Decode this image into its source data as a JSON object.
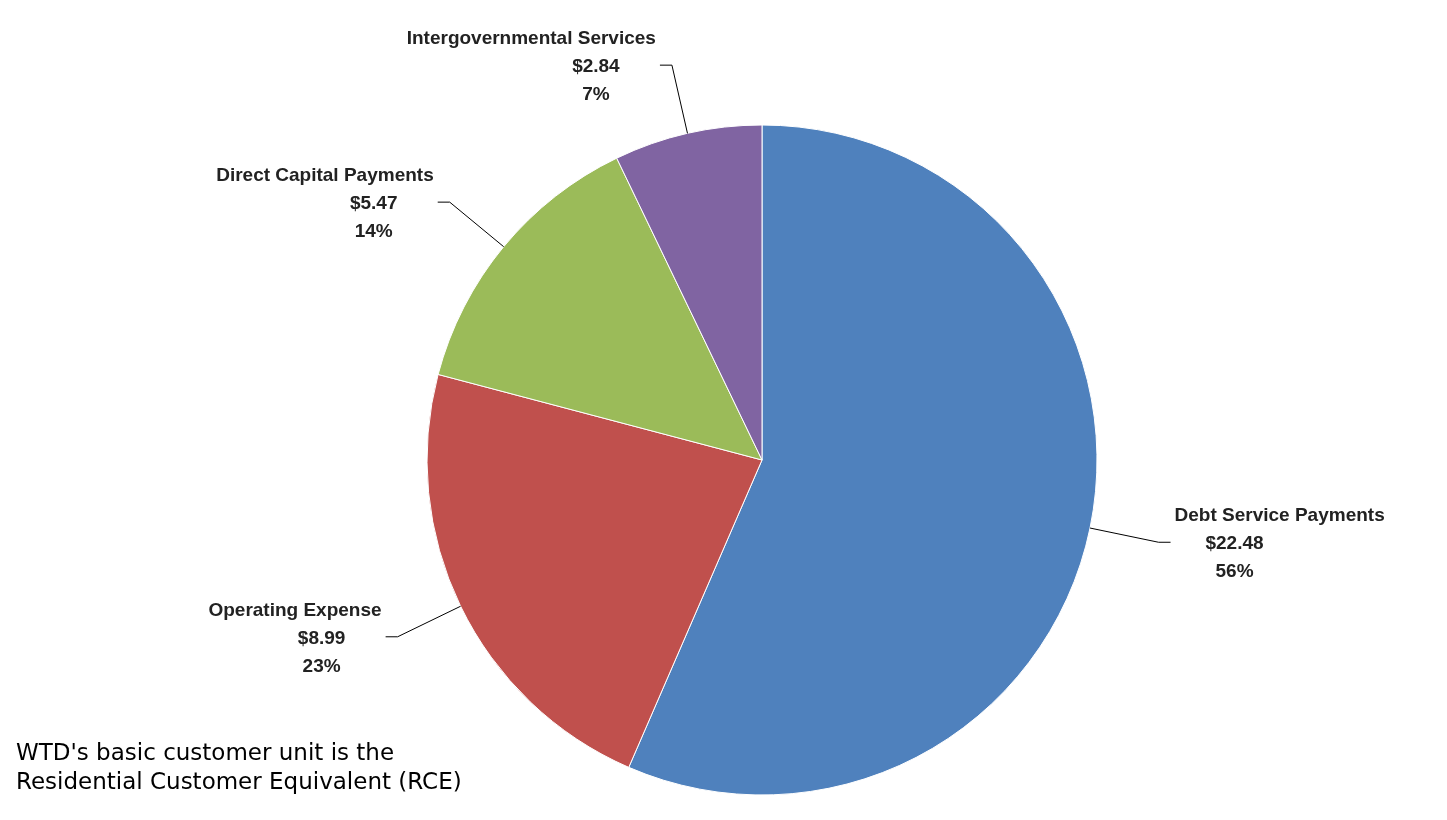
{
  "chart_data": {
    "type": "pie",
    "categories": [
      "Debt Service Payments",
      "Operating Expense",
      "Direct Capital Payments",
      "Intergovernmental Services"
    ],
    "values": [
      22.48,
      8.99,
      5.47,
      2.84
    ],
    "value_labels": [
      "$22.48\n56%",
      "$8.99\n23%",
      "$5.47\n14%",
      "$2.84\n7%"
    ],
    "colors": [
      "#4f81bd",
      "#c0504d",
      "#9bbb59",
      "#8064a2"
    ],
    "legend": false,
    "annotations": [
      "WTD's basic customer unit is the Residential Customer Equivalent (RCE)"
    ]
  }
}
